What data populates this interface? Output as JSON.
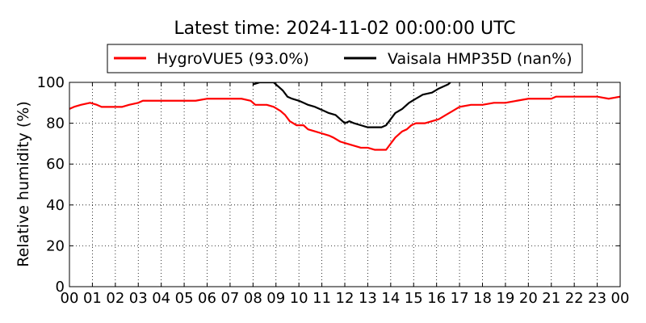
{
  "chart_data": {
    "type": "line",
    "title": "Latest time: 2024-11-02 00:00:00 UTC",
    "xlabel": "",
    "ylabel": "Relative humidity (%)",
    "xlim": [
      0,
      24
    ],
    "ylim": [
      0,
      100
    ],
    "x_ticks": [
      0,
      1,
      2,
      3,
      4,
      5,
      6,
      7,
      8,
      9,
      10,
      11,
      12,
      13,
      14,
      15,
      16,
      17,
      18,
      19,
      20,
      21,
      22,
      23,
      24
    ],
    "x_tick_labels": [
      "00",
      "01",
      "02",
      "03",
      "04",
      "05",
      "06",
      "07",
      "08",
      "09",
      "10",
      "11",
      "12",
      "13",
      "14",
      "15",
      "16",
      "17",
      "18",
      "19",
      "20",
      "21",
      "22",
      "23",
      "00"
    ],
    "y_ticks": [
      0,
      20,
      40,
      60,
      80,
      100
    ],
    "y_tick_labels": [
      "0",
      "20",
      "40",
      "60",
      "80",
      "100"
    ],
    "grid": true,
    "legend_position": "top-center",
    "series": [
      {
        "name": "HygroVUE5 (93.0%)",
        "color": "#ff0000",
        "points": [
          [
            0.0,
            87
          ],
          [
            0.2,
            88
          ],
          [
            0.5,
            89
          ],
          [
            0.9,
            90
          ],
          [
            1.2,
            89
          ],
          [
            1.4,
            88
          ],
          [
            2.3,
            88
          ],
          [
            2.6,
            89
          ],
          [
            3.0,
            90
          ],
          [
            3.2,
            91
          ],
          [
            4.0,
            91
          ],
          [
            4.5,
            91
          ],
          [
            5.5,
            91
          ],
          [
            6.0,
            92
          ],
          [
            7.5,
            92
          ],
          [
            7.9,
            91
          ],
          [
            8.1,
            89
          ],
          [
            8.6,
            89
          ],
          [
            8.9,
            88
          ],
          [
            9.2,
            86
          ],
          [
            9.4,
            84
          ],
          [
            9.6,
            81
          ],
          [
            9.9,
            79
          ],
          [
            10.2,
            79
          ],
          [
            10.4,
            77
          ],
          [
            10.7,
            76
          ],
          [
            11.0,
            75
          ],
          [
            11.3,
            74
          ],
          [
            11.5,
            73
          ],
          [
            11.8,
            71
          ],
          [
            12.1,
            70
          ],
          [
            12.4,
            69
          ],
          [
            12.7,
            68
          ],
          [
            13.0,
            68
          ],
          [
            13.3,
            67
          ],
          [
            13.8,
            67
          ],
          [
            14.0,
            70
          ],
          [
            14.2,
            73
          ],
          [
            14.5,
            76
          ],
          [
            14.7,
            77
          ],
          [
            14.9,
            79
          ],
          [
            15.1,
            80
          ],
          [
            15.5,
            80
          ],
          [
            15.8,
            81
          ],
          [
            16.1,
            82
          ],
          [
            16.4,
            84
          ],
          [
            16.7,
            86
          ],
          [
            17.0,
            88
          ],
          [
            17.5,
            89
          ],
          [
            18.0,
            89
          ],
          [
            18.5,
            90
          ],
          [
            19.0,
            90
          ],
          [
            19.5,
            91
          ],
          [
            20.0,
            92
          ],
          [
            21.0,
            92
          ],
          [
            21.2,
            93
          ],
          [
            22.0,
            93
          ],
          [
            23.0,
            93
          ],
          [
            23.5,
            92
          ],
          [
            24.0,
            93
          ]
        ]
      },
      {
        "name": "Vaisala HMP35D (nan%)",
        "color": "#000000",
        "points": [
          [
            8.0,
            99
          ],
          [
            8.3,
            100
          ],
          [
            8.9,
            100
          ],
          [
            9.1,
            98
          ],
          [
            9.3,
            96
          ],
          [
            9.5,
            93
          ],
          [
            9.7,
            92
          ],
          [
            10.0,
            91
          ],
          [
            10.2,
            90
          ],
          [
            10.4,
            89
          ],
          [
            10.7,
            88
          ],
          [
            10.9,
            87
          ],
          [
            11.1,
            86
          ],
          [
            11.3,
            85
          ],
          [
            11.6,
            84
          ],
          [
            11.8,
            82
          ],
          [
            12.0,
            80
          ],
          [
            12.2,
            81
          ],
          [
            12.4,
            80
          ],
          [
            12.7,
            79
          ],
          [
            13.0,
            78
          ],
          [
            13.3,
            78
          ],
          [
            13.6,
            78
          ],
          [
            13.8,
            79
          ],
          [
            14.0,
            82
          ],
          [
            14.2,
            85
          ],
          [
            14.5,
            87
          ],
          [
            14.8,
            90
          ],
          [
            15.1,
            92
          ],
          [
            15.4,
            94
          ],
          [
            15.8,
            95
          ],
          [
            16.1,
            97
          ],
          [
            16.5,
            99
          ],
          [
            16.6,
            100
          ]
        ]
      }
    ]
  }
}
